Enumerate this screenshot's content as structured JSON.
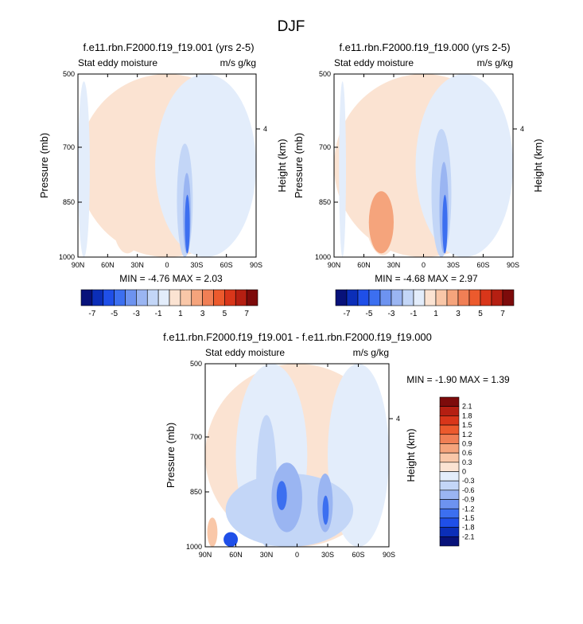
{
  "figure_title": "DJF",
  "chart_data": [
    {
      "type": "heatmap",
      "title": "f.e11.rbn.F2000.f19_f19.001 (yrs 2-5)",
      "left_label": "Stat eddy moisture",
      "right_label": "m/s g/kg",
      "xlabel": "",
      "ylabel": "Pressure (mb)",
      "y2label": "Height (km)",
      "x_ticks": [
        "90N",
        "60N",
        "30N",
        "0",
        "30S",
        "60S",
        "90S"
      ],
      "y_ticks": [
        "500",
        "700",
        "850",
        "1000"
      ],
      "y2_ticks": [
        "4"
      ],
      "min_max": "MIN =  -4.76  MAX =  2.03",
      "colorbar": {
        "labels": [
          "-7",
          "-5",
          "-3",
          "-1",
          "1",
          "3",
          "5",
          "7"
        ],
        "colors": [
          "#08127a",
          "#0b2eb8",
          "#1f4fe8",
          "#3c6ff0",
          "#6d93f0",
          "#9ab5f2",
          "#c3d6f7",
          "#e3edfb",
          "#fbe3d2",
          "#f9c7a8",
          "#f5a47c",
          "#f07f55",
          "#ec5a2d",
          "#d9361a",
          "#b51f12",
          "#7d0b0b"
        ]
      },
      "regions": [
        {
          "x": [
            -90,
            90
          ],
          "y": [
            500,
            1000
          ],
          "value": 0.3
        },
        {
          "x": [
            -90,
            -78
          ],
          "y": [
            520,
            1000
          ],
          "value": -0.3
        },
        {
          "x": [
            -12,
            90
          ],
          "y": [
            500,
            1000
          ],
          "value": -0.3
        },
        {
          "x": [
            -55,
            -25
          ],
          "y": [
            800,
            990
          ],
          "value": 0.8
        },
        {
          "x": [
            10,
            26
          ],
          "y": [
            690,
            1000
          ],
          "value": -1.3
        },
        {
          "x": [
            16,
            24
          ],
          "y": [
            770,
            990
          ],
          "value": -2.5
        },
        {
          "x": [
            18,
            23
          ],
          "y": [
            830,
            990
          ],
          "value": -4.0
        }
      ]
    },
    {
      "type": "heatmap",
      "title": "f.e11.rbn.F2000.f19_f19.000 (yrs 2-5)",
      "left_label": "Stat eddy moisture",
      "right_label": "m/s g/kg",
      "xlabel": "",
      "ylabel": "Pressure (mb)",
      "y2label": "Height (km)",
      "x_ticks": [
        "90N",
        "60N",
        "30N",
        "0",
        "30S",
        "60S",
        "90S"
      ],
      "y_ticks": [
        "500",
        "700",
        "850",
        "1000"
      ],
      "y2_ticks": [
        "4"
      ],
      "min_max": "MIN =  -4.68  MAX =  2.97",
      "colorbar": {
        "labels": [
          "-7",
          "-5",
          "-3",
          "-1",
          "1",
          "3",
          "5",
          "7"
        ],
        "colors": [
          "#08127a",
          "#0b2eb8",
          "#1f4fe8",
          "#3c6ff0",
          "#6d93f0",
          "#9ab5f2",
          "#c3d6f7",
          "#e3edfb",
          "#fbe3d2",
          "#f9c7a8",
          "#f5a47c",
          "#f07f55",
          "#ec5a2d",
          "#d9361a",
          "#b51f12",
          "#7d0b0b"
        ]
      },
      "regions": [
        {
          "x": [
            -90,
            90
          ],
          "y": [
            500,
            1000
          ],
          "value": 0.3
        },
        {
          "x": [
            -85,
            -78
          ],
          "y": [
            520,
            1000
          ],
          "value": -0.3
        },
        {
          "x": [
            -8,
            90
          ],
          "y": [
            500,
            1000
          ],
          "value": -0.3
        },
        {
          "x": [
            -62,
            -20
          ],
          "y": [
            640,
            995
          ],
          "value": 0.8
        },
        {
          "x": [
            -55,
            -30
          ],
          "y": [
            820,
            990
          ],
          "value": 2.0
        },
        {
          "x": [
            8,
            28
          ],
          "y": [
            650,
            1000
          ],
          "value": -1.3
        },
        {
          "x": [
            16,
            25
          ],
          "y": [
            740,
            990
          ],
          "value": -2.5
        },
        {
          "x": [
            19,
            24
          ],
          "y": [
            830,
            990
          ],
          "value": -4.0
        }
      ]
    },
    {
      "type": "heatmap",
      "title": "f.e11.rbn.F2000.f19_f19.001 - f.e11.rbn.F2000.f19_f19.000",
      "left_label": "Stat eddy moisture",
      "right_label": "m/s g/kg",
      "xlabel": "",
      "ylabel": "Pressure (mb)",
      "y2label": "Height (km)",
      "x_ticks": [
        "90N",
        "60N",
        "30N",
        "0",
        "30S",
        "60S",
        "90S"
      ],
      "y_ticks": [
        "500",
        "700",
        "850",
        "1000"
      ],
      "y2_ticks": [
        "4"
      ],
      "min_max": "MIN =  -1.90  MAX =  1.39",
      "colorbar": {
        "labels": [
          "2.1",
          "1.8",
          "1.5",
          "1.2",
          "0.9",
          "0.6",
          "0.3",
          "0",
          "-0.3",
          "-0.6",
          "-0.9",
          "-1.2",
          "-1.5",
          "-1.8",
          "-2.1"
        ],
        "colors": [
          "#7d0b0b",
          "#b51f12",
          "#d9361a",
          "#ec5a2d",
          "#f07f55",
          "#f5a47c",
          "#f9c7a8",
          "#fbe3d2",
          "#e3edfb",
          "#c3d6f7",
          "#9ab5f2",
          "#6d93f0",
          "#3c6ff0",
          "#1f4fe8",
          "#0b2eb8",
          "#08127a"
        ]
      },
      "regions": [
        {
          "x": [
            -90,
            90
          ],
          "y": [
            500,
            1000
          ],
          "value": 0.1
        },
        {
          "x": [
            -60,
            10
          ],
          "y": [
            500,
            1000
          ],
          "value": -0.1
        },
        {
          "x": [
            30,
            90
          ],
          "y": [
            500,
            1000
          ],
          "value": -0.1
        },
        {
          "x": [
            -70,
            55
          ],
          "y": [
            800,
            1000
          ],
          "value": -0.4
        },
        {
          "x": [
            -40,
            -20
          ],
          "y": [
            640,
            1000
          ],
          "value": -0.4
        },
        {
          "x": [
            -25,
            5
          ],
          "y": [
            770,
            960
          ],
          "value": -0.7
        },
        {
          "x": [
            -20,
            -10
          ],
          "y": [
            820,
            900
          ],
          "value": -1.2
        },
        {
          "x": [
            20,
            35
          ],
          "y": [
            800,
            960
          ],
          "value": -0.7
        },
        {
          "x": [
            25,
            31
          ],
          "y": [
            860,
            940
          ],
          "value": -1.2
        },
        {
          "x": [
            -88,
            -78
          ],
          "y": [
            920,
            1000
          ],
          "value": 0.5
        },
        {
          "x": [
            -72,
            -58
          ],
          "y": [
            960,
            1000
          ],
          "value": -1.5
        }
      ]
    }
  ]
}
